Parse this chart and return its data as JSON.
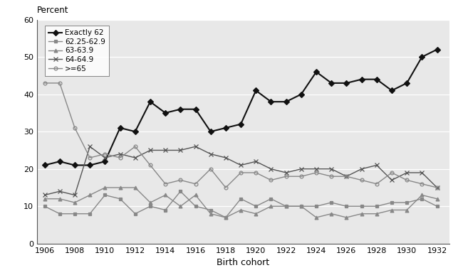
{
  "years": [
    1906,
    1907,
    1908,
    1909,
    1910,
    1911,
    1912,
    1913,
    1914,
    1915,
    1916,
    1917,
    1918,
    1919,
    1920,
    1921,
    1922,
    1923,
    1924,
    1925,
    1926,
    1927,
    1928,
    1929,
    1930,
    1931,
    1932
  ],
  "exactly62": [
    21,
    22,
    21,
    21,
    22,
    31,
    30,
    38,
    35,
    36,
    36,
    30,
    31,
    32,
    41,
    38,
    38,
    40,
    46,
    43,
    43,
    44,
    44,
    41,
    43,
    50,
    52
  ],
  "s6225_629": [
    10,
    8,
    8,
    8,
    13,
    12,
    8,
    10,
    9,
    14,
    10,
    9,
    7,
    12,
    10,
    12,
    10,
    10,
    10,
    11,
    10,
    10,
    10,
    11,
    11,
    12,
    10
  ],
  "s63_639": [
    12,
    12,
    11,
    13,
    15,
    15,
    15,
    11,
    13,
    10,
    13,
    8,
    7,
    9,
    8,
    10,
    10,
    10,
    7,
    8,
    7,
    8,
    8,
    9,
    9,
    13,
    12
  ],
  "s64_649": [
    13,
    14,
    13,
    26,
    23,
    24,
    23,
    25,
    25,
    25,
    26,
    24,
    23,
    21,
    22,
    20,
    19,
    20,
    20,
    20,
    18,
    20,
    21,
    17,
    19,
    19,
    15
  ],
  "ge65": [
    43,
    43,
    31,
    23,
    24,
    23,
    26,
    21,
    16,
    17,
    16,
    20,
    15,
    19,
    19,
    17,
    18,
    18,
    19,
    18,
    18,
    17,
    16,
    19,
    17,
    16,
    15
  ],
  "ylabel_text": "Percent",
  "xlabel": "Birth cohort",
  "ylim": [
    0,
    60
  ],
  "yticks": [
    0,
    10,
    20,
    30,
    40,
    50,
    60
  ],
  "legend_labels": [
    "Exactly 62",
    "62.25-62.9",
    "63-63.9",
    "64-64.9",
    ">=65"
  ],
  "fig_bg": "#ffffff",
  "plot_bg": "#e8e8e8"
}
